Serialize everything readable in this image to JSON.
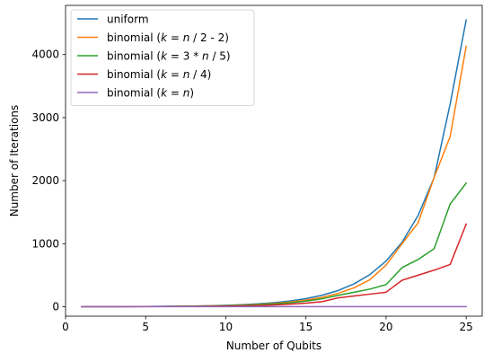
{
  "chart_data": {
    "type": "line",
    "xlabel": "Number of Qubits",
    "ylabel": "Number of Iterations",
    "xlim": [
      0,
      26
    ],
    "ylim": [
      -150,
      4780
    ],
    "xticks": [
      0,
      5,
      10,
      15,
      20,
      25
    ],
    "yticks": [
      0,
      1000,
      2000,
      3000,
      4000
    ],
    "grid": false,
    "legend_position": "top-left",
    "x": [
      1,
      2,
      3,
      4,
      5,
      6,
      7,
      8,
      9,
      10,
      11,
      12,
      13,
      14,
      15,
      16,
      17,
      18,
      19,
      20,
      21,
      22,
      23,
      24,
      25
    ],
    "series": [
      {
        "name_parts": [
          {
            "t": "uniform"
          }
        ],
        "color": "#1f77b4",
        "values": [
          1,
          1,
          2,
          3,
          4,
          6,
          8,
          11,
          16,
          22,
          32,
          45,
          64,
          90,
          128,
          181,
          256,
          362,
          511,
          724,
          1023,
          1447,
          2047,
          3216,
          4549
        ]
      },
      {
        "name_parts": [
          {
            "t": "binomial ("
          },
          {
            "t": "k",
            "i": true
          },
          {
            "t": " = "
          },
          {
            "t": "n",
            "i": true
          },
          {
            "t": " / 2 - 2)"
          }
        ],
        "color": "#ff7f0e",
        "values": [
          1,
          1,
          1,
          2,
          3,
          4,
          6,
          9,
          13,
          18,
          26,
          37,
          52,
          74,
          104,
          147,
          210,
          300,
          430,
          660,
          1000,
          1330,
          2050,
          2700,
          4130
        ]
      },
      {
        "name_parts": [
          {
            "t": "binomial ("
          },
          {
            "t": "k",
            "i": true
          },
          {
            "t": " = 3 * "
          },
          {
            "t": "n",
            "i": true
          },
          {
            "t": " / 5)"
          }
        ],
        "color": "#2ca02c",
        "values": [
          1,
          1,
          1,
          2,
          3,
          4,
          6,
          8,
          11,
          16,
          22,
          31,
          44,
          62,
          88,
          125,
          180,
          230,
          280,
          350,
          620,
          750,
          920,
          1630,
          1960
        ]
      },
      {
        "name_parts": [
          {
            "t": "binomial ("
          },
          {
            "t": "k",
            "i": true
          },
          {
            "t": " = "
          },
          {
            "t": "n",
            "i": true
          },
          {
            "t": " / 4)"
          }
        ],
        "color": "#d62728",
        "values": [
          1,
          1,
          1,
          1,
          2,
          3,
          4,
          5,
          7,
          10,
          14,
          20,
          28,
          40,
          56,
          80,
          140,
          170,
          200,
          230,
          420,
          500,
          580,
          670,
          1310
        ]
      },
      {
        "name_parts": [
          {
            "t": "binomial ("
          },
          {
            "t": "k",
            "i": true
          },
          {
            "t": " = "
          },
          {
            "t": "n",
            "i": true
          },
          {
            "t": ")"
          }
        ],
        "color": "#9467bd",
        "values": [
          1,
          1,
          1,
          1,
          1,
          1,
          1,
          1,
          1,
          1,
          1,
          1,
          1,
          1,
          1,
          1,
          1,
          1,
          1,
          1,
          1,
          1,
          1,
          1,
          1
        ]
      }
    ]
  }
}
